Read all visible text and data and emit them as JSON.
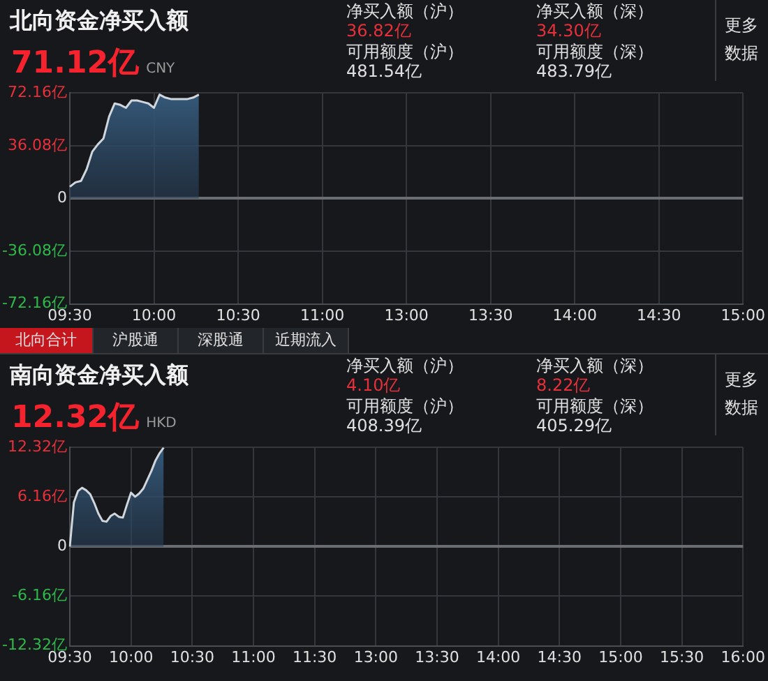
{
  "chart_data": [
    {
      "type": "area",
      "title": "北向资金净买入额",
      "subtitle": "71.12亿 CNY",
      "annotations": [
        "净买入额（沪）",
        "36.82亿",
        "净买入额（深）",
        "34.30亿",
        "可用额度（沪）",
        "481.54亿",
        "可用额度（深）",
        "483.79亿",
        "更多数据",
        "北向合计",
        "沪股通",
        "深股通",
        "近期流入"
      ],
      "categories": [
        "09:30",
        null,
        null,
        null,
        null,
        null,
        null,
        null,
        null,
        null,
        null,
        null,
        null,
        null,
        null,
        "10:00",
        null,
        null,
        null,
        null,
        null,
        null,
        null,
        null,
        null,
        null,
        null,
        null,
        null,
        null,
        "10:30",
        null,
        null,
        null,
        null,
        null,
        null,
        null,
        null,
        null,
        null,
        null,
        null,
        null,
        null,
        "11:00",
        null,
        null,
        null,
        null,
        null,
        null,
        null,
        null,
        null,
        null,
        null,
        null,
        null,
        null,
        "13:00",
        null,
        null,
        null,
        null,
        null,
        null,
        null,
        null,
        null,
        null,
        null,
        null,
        null,
        null,
        "13:30",
        null,
        null,
        null,
        null,
        null,
        null,
        null,
        null,
        null,
        null,
        null,
        null,
        null,
        null,
        "14:00",
        null,
        null,
        null,
        null,
        null,
        null,
        null,
        null,
        null,
        null,
        null,
        null,
        null,
        null,
        "14:30",
        null,
        null,
        null,
        null,
        null,
        null,
        null,
        null,
        null,
        null,
        null,
        null,
        null,
        null,
        "15:00"
      ],
      "series": [
        {
          "color": "#35597a",
          "values": [
            8,
            11,
            12,
            20,
            32,
            37,
            41,
            56,
            65,
            64,
            62,
            67,
            67,
            66,
            65,
            62,
            71,
            69,
            68,
            68,
            68,
            68,
            69,
            71,
            null,
            null,
            null,
            null,
            null,
            null,
            null,
            null,
            null,
            null,
            null,
            null,
            null,
            null,
            null,
            null,
            null,
            null,
            null,
            null,
            null,
            null,
            null,
            null,
            null,
            null,
            null,
            null,
            null,
            null,
            null,
            null,
            null,
            null,
            null,
            null,
            null,
            null,
            null,
            null,
            null,
            null,
            null,
            null,
            null,
            null,
            null,
            null,
            null,
            null,
            null,
            null,
            null,
            null,
            null,
            null,
            null,
            null,
            null,
            null,
            null,
            null,
            null,
            null,
            null,
            null,
            null,
            null,
            null,
            null,
            null,
            null,
            null,
            null,
            null,
            null,
            null,
            null,
            null,
            null,
            null,
            null,
            null,
            null,
            null,
            null,
            null,
            null,
            null,
            null,
            null,
            null,
            null,
            null,
            null,
            null,
            null
          ]
        }
      ],
      "ylim": [
        -72.16,
        72.16
      ],
      "yticks": [
        {
          "value": -72.16,
          "label": "-72.16亿"
        },
        {
          "value": -36.08,
          "label": "-36.08亿"
        },
        0,
        {
          "value": 36.08,
          "label": "36.08亿"
        },
        {
          "value": 72.16,
          "label": "72.16亿"
        }
      ],
      "grid": true,
      "marker": "none"
    },
    {
      "type": "area",
      "title": "南向资金净买入额",
      "subtitle": "12.32亿 HKD",
      "annotations": [
        "净买入额（沪）",
        "4.10亿",
        "净买入额（深）",
        "8.22亿",
        "可用额度（沪）",
        "408.39亿",
        "可用额度（深）",
        "405.29亿",
        "更多数据"
      ],
      "categories": [
        "09:30",
        null,
        null,
        null,
        null,
        null,
        null,
        null,
        null,
        null,
        null,
        null,
        null,
        null,
        null,
        "10:00",
        null,
        null,
        null,
        null,
        null,
        null,
        null,
        null,
        null,
        null,
        null,
        null,
        null,
        null,
        "10:30",
        null,
        null,
        null,
        null,
        null,
        null,
        null,
        null,
        null,
        null,
        null,
        null,
        null,
        null,
        "11:00",
        null,
        null,
        null,
        null,
        null,
        null,
        null,
        null,
        null,
        null,
        null,
        null,
        null,
        null,
        "11:30",
        null,
        null,
        null,
        null,
        null,
        null,
        null,
        null,
        null,
        null,
        null,
        null,
        null,
        null,
        "13:00",
        null,
        null,
        null,
        null,
        null,
        null,
        null,
        null,
        null,
        null,
        null,
        null,
        null,
        null,
        "13:30",
        null,
        null,
        null,
        null,
        null,
        null,
        null,
        null,
        null,
        null,
        null,
        null,
        null,
        null,
        "14:00",
        null,
        null,
        null,
        null,
        null,
        null,
        null,
        null,
        null,
        null,
        null,
        null,
        null,
        null,
        "14:30",
        null,
        null,
        null,
        null,
        null,
        null,
        null,
        null,
        null,
        null,
        null,
        null,
        null,
        null,
        "15:00",
        null,
        null,
        null,
        null,
        null,
        null,
        null,
        null,
        null,
        null,
        null,
        null,
        null,
        null,
        "15:30",
        null,
        null,
        null,
        null,
        null,
        null,
        null,
        null,
        null,
        null,
        null,
        null,
        null,
        null,
        "16:00"
      ],
      "series": [
        {
          "color": "#35597a",
          "values": [
            0,
            5.5,
            6.9,
            7.3,
            7.0,
            6.5,
            5.4,
            4.1,
            3.2,
            3.1,
            3.8,
            4.1,
            3.7,
            3.6,
            5.2,
            6.7,
            6.2,
            6.6,
            7.2,
            8.3,
            9.4,
            10.7,
            11.6,
            12.3,
            null,
            null,
            null,
            null,
            null,
            null,
            null,
            null,
            null,
            null,
            null,
            null,
            null,
            null,
            null,
            null,
            null,
            null,
            null,
            null,
            null,
            null,
            null,
            null,
            null,
            null,
            null,
            null,
            null,
            null,
            null,
            null,
            null,
            null,
            null,
            null,
            null,
            null,
            null,
            null,
            null,
            null,
            null,
            null,
            null,
            null,
            null,
            null,
            null,
            null,
            null,
            null,
            null,
            null,
            null,
            null,
            null,
            null,
            null,
            null,
            null,
            null,
            null,
            null,
            null,
            null,
            null,
            null,
            null,
            null,
            null,
            null,
            null,
            null,
            null,
            null,
            null,
            null,
            null,
            null,
            null,
            null,
            null,
            null,
            null,
            null,
            null,
            null,
            null,
            null,
            null,
            null,
            null,
            null,
            null,
            null,
            null,
            null,
            null,
            null,
            null,
            null,
            null,
            null,
            null,
            null,
            null,
            null,
            null,
            null,
            null,
            null,
            null,
            null,
            null,
            null,
            null,
            null,
            null,
            null,
            null,
            null,
            null,
            null,
            null,
            null,
            null,
            null,
            null,
            null,
            null,
            null,
            null,
            null,
            null,
            null,
            null,
            null,
            null,
            null,
            null,
            null
          ]
        }
      ],
      "ylim": [
        -12.32,
        12.32
      ],
      "yticks": [
        {
          "value": -12.32,
          "label": "-12.32亿"
        },
        {
          "value": -6.16,
          "label": "-6.16亿"
        },
        0,
        {
          "value": 6.16,
          "label": "6.16亿"
        },
        {
          "value": 12.32,
          "label": "12.32亿"
        }
      ],
      "grid": true,
      "marker": "none"
    }
  ]
}
